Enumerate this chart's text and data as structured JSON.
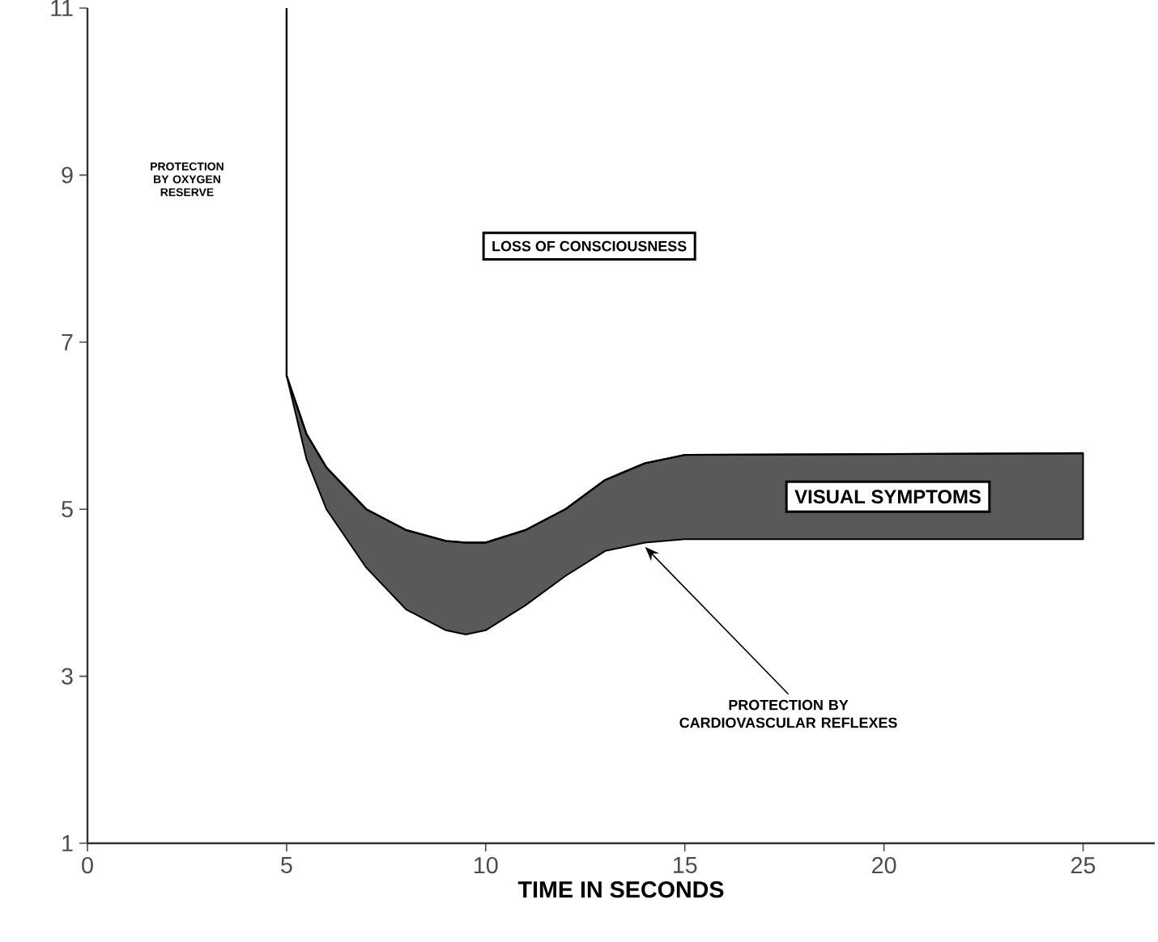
{
  "chart_data": {
    "type": "line",
    "xlabel": "TIME IN SECONDS",
    "xlim": [
      0,
      26.8
    ],
    "ylim": [
      1,
      11
    ],
    "xticks": [
      0,
      5,
      10,
      15,
      20,
      25
    ],
    "yticks": [
      1,
      3,
      5,
      7,
      9,
      11
    ],
    "series": [
      {
        "color": "#000000",
        "x": [
          5,
          5,
          5.5,
          6,
          7,
          8,
          9,
          9.5,
          10,
          11,
          12,
          13,
          14,
          15,
          25
        ],
        "values": [
          11,
          6.6,
          5.9,
          5.5,
          5.0,
          4.75,
          4.62,
          4.6,
          4.6,
          4.75,
          5.0,
          5.35,
          5.55,
          5.65,
          5.67
        ],
        "lower": [
          null,
          6.6,
          5.6,
          5.0,
          4.3,
          3.8,
          3.55,
          3.5,
          3.55,
          3.85,
          4.2,
          4.5,
          4.6,
          4.64,
          4.64
        ],
        "upper": [
          null,
          6.6,
          5.9,
          5.5,
          5.0,
          4.75,
          4.62,
          4.6,
          4.6,
          4.75,
          5.0,
          5.35,
          5.55,
          5.65,
          5.67
        ]
      }
    ],
    "annotations": [
      "PROTECTION BY OXYGEN RESERVE",
      "LOSS OF CONSCIOUSNESS",
      "VISUAL SYMPTOMS",
      {
        "text": "PROTECTION BY CARDIOVASCULAR REFLEXES",
        "x": 14,
        "y": 4.55
      }
    ],
    "legend": false
  }
}
